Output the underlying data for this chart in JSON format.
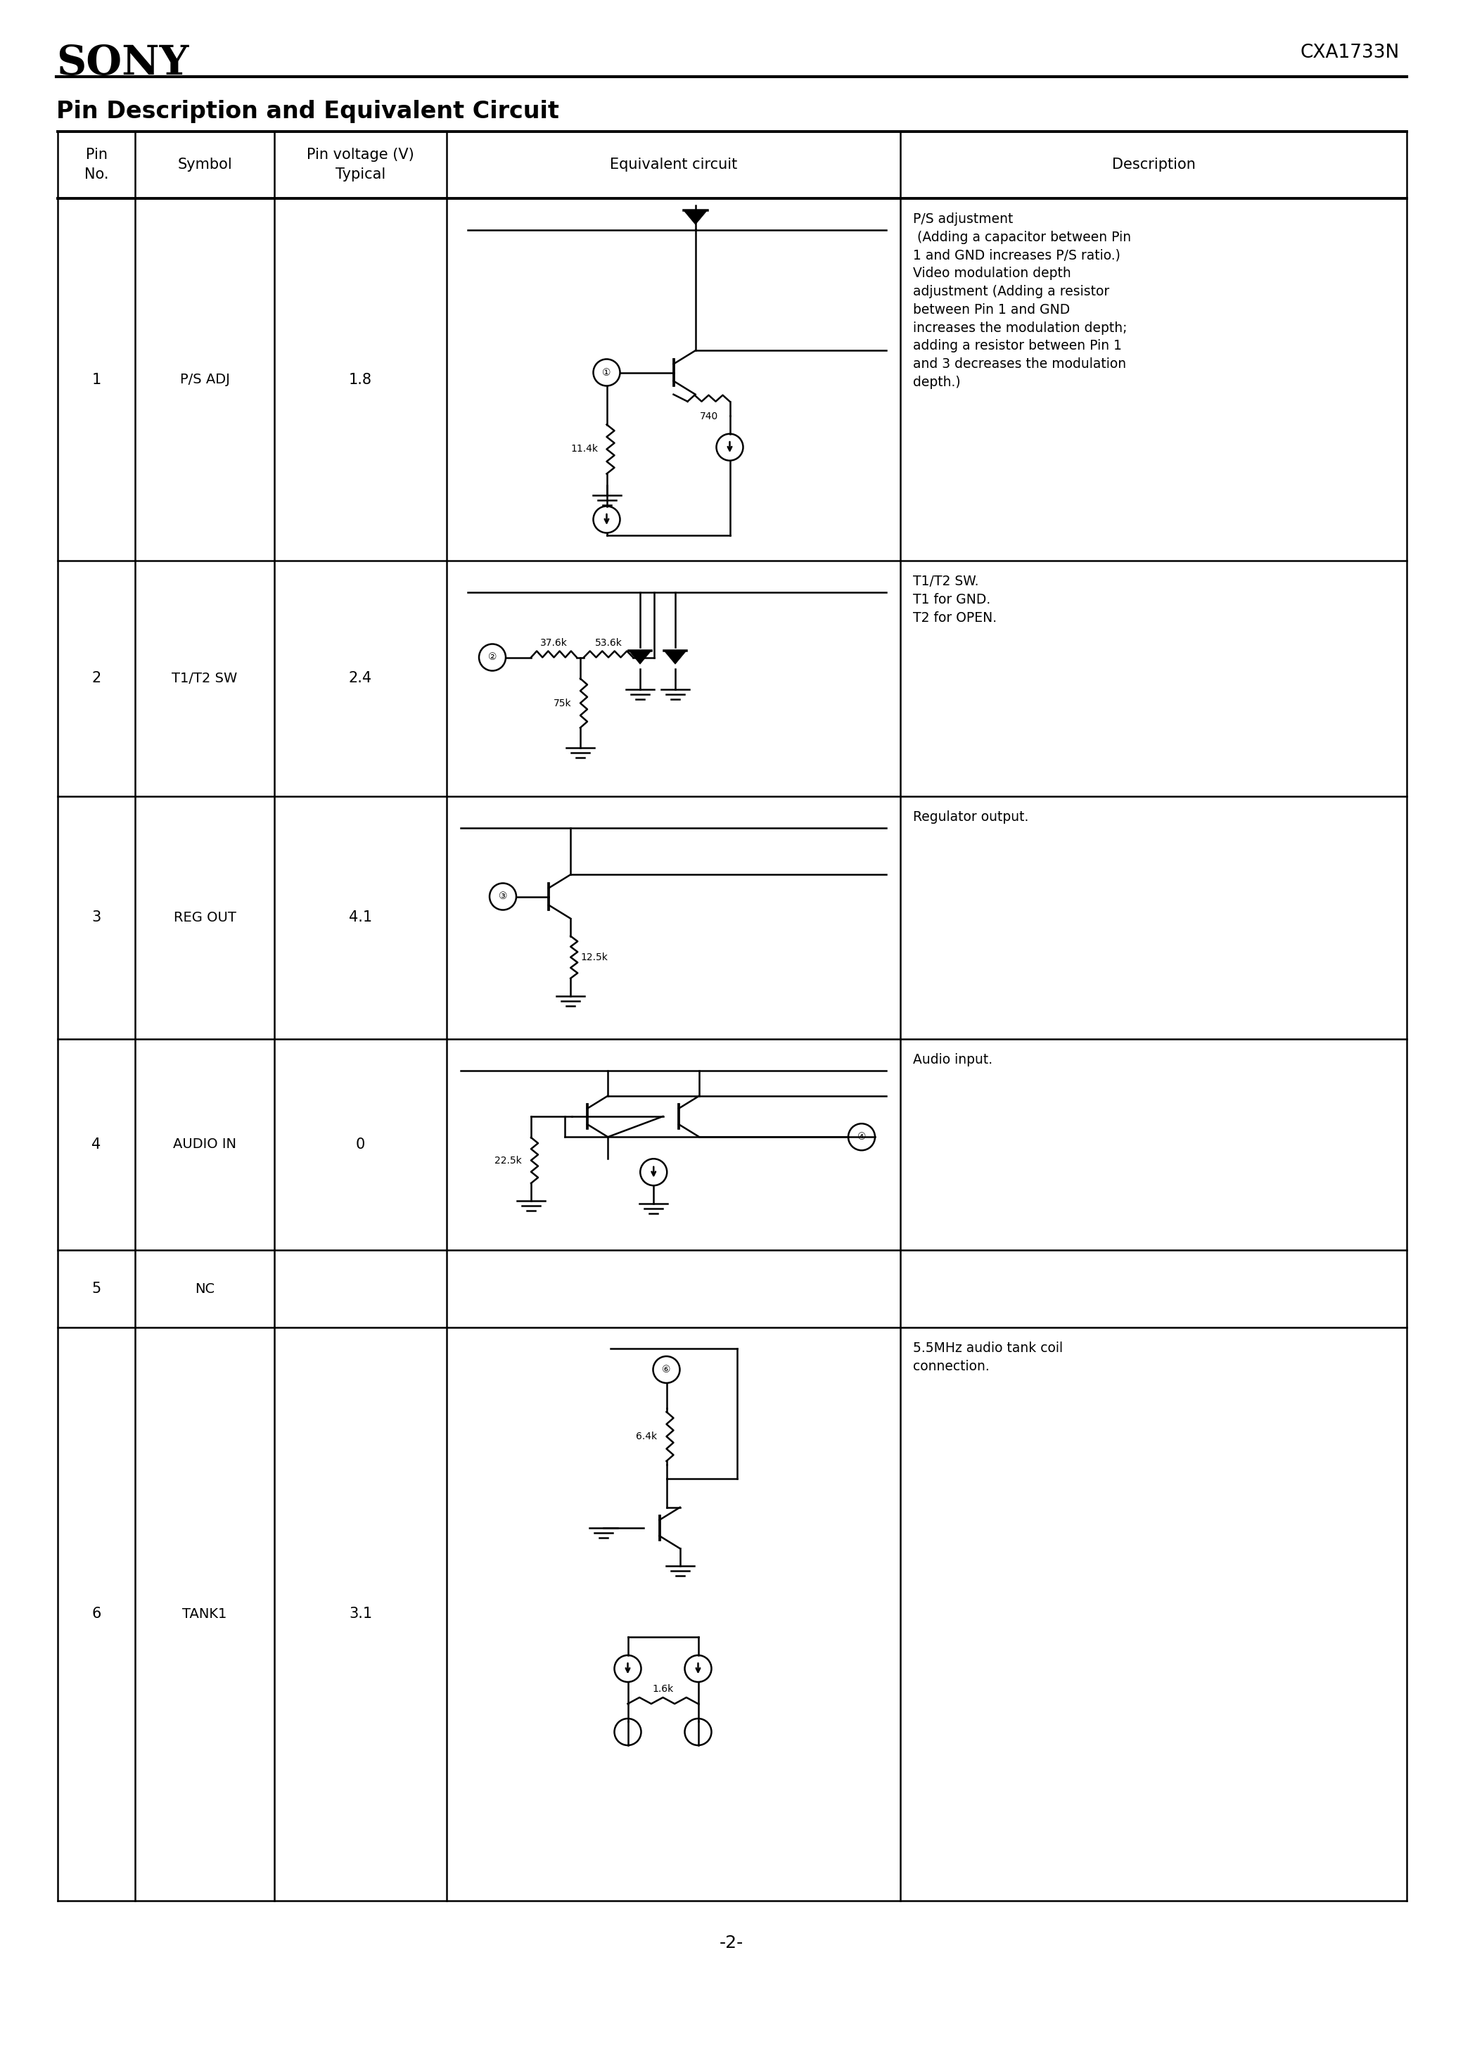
{
  "sony_logo": "SONY",
  "part_number": "CXA1733N",
  "section_title": "Pin Description and Equivalent Circuit",
  "page_number": "-2-",
  "background": "#ffffff",
  "rows": [
    {
      "pin": "1",
      "symbol": "P/S ADJ",
      "voltage": "1.8",
      "description": "P/S adjustment\n (Adding a capacitor between Pin\n1 and GND increases P/S ratio.)\nVideo modulation depth\nadjustment (Adding a resistor\nbetween Pin 1 and GND\nincreases the modulation depth;\nadding a resistor between Pin 1\nand 3 decreases the modulation\ndepth.)"
    },
    {
      "pin": "2",
      "symbol": "T1/T2 SW",
      "voltage": "2.4",
      "description": "T1/T2 SW.\nT1 for GND.\nT2 for OPEN."
    },
    {
      "pin": "3",
      "symbol": "REG OUT",
      "voltage": "4.1",
      "description": "Regulator output."
    },
    {
      "pin": "4",
      "symbol": "AUDIO IN",
      "voltage": "0",
      "description": "Audio input."
    },
    {
      "pin": "5",
      "symbol": "NC",
      "voltage": "",
      "description": ""
    },
    {
      "pin": "6",
      "symbol": "TANK1",
      "voltage": "3.1",
      "description": "5.5MHz audio tank coil\nconnection."
    }
  ]
}
